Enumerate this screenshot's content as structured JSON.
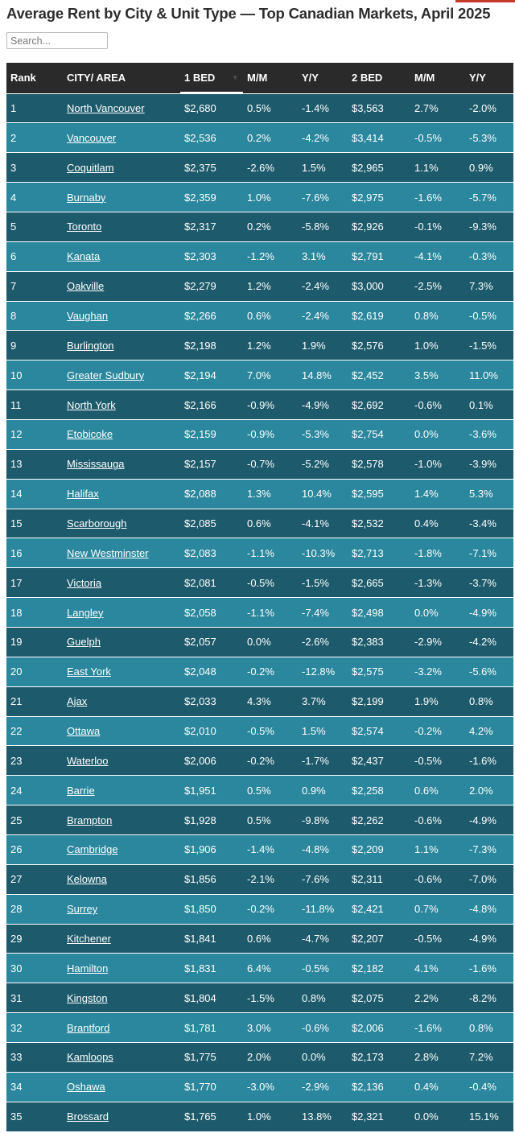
{
  "page": {
    "title": "Average Rent by City & Unit Type — Top Canadian Markets, April 2025",
    "search_placeholder": "Search...",
    "accent_color": "#c0392b",
    "row_colors": [
      "#1d5b6c",
      "#2a879d"
    ],
    "header_color": "#2a2a2a"
  },
  "table": {
    "columns": [
      "Rank",
      "CITY/ AREA",
      "1 BED",
      "M/M",
      "Y/Y",
      "2 BED",
      "M/M",
      "Y/Y"
    ],
    "sorted_column": "1 BED",
    "rows": [
      [
        "1",
        "North Vancouver",
        "$2,680",
        "0.5%",
        "-1.4%",
        "$3,563",
        "2.7%",
        "-2.0%"
      ],
      [
        "2",
        "Vancouver",
        "$2,536",
        "0.2%",
        "-4.2%",
        "$3,414",
        "-0.5%",
        "-5.3%"
      ],
      [
        "3",
        "Coquitlam",
        "$2,375",
        "-2.6%",
        "1.5%",
        "$2,965",
        "1.1%",
        "0.9%"
      ],
      [
        "4",
        "Burnaby",
        "$2,359",
        "1.0%",
        "-7.6%",
        "$2,975",
        "-1.6%",
        "-5.7%"
      ],
      [
        "5",
        "Toronto",
        "$2,317",
        "0.2%",
        "-5.8%",
        "$2,926",
        "-0.1%",
        "-9.3%"
      ],
      [
        "6",
        "Kanata",
        "$2,303",
        "-1.2%",
        "3.1%",
        "$2,791",
        "-4.1%",
        "-0.3%"
      ],
      [
        "7",
        "Oakville",
        "$2,279",
        "1.2%",
        "-2.4%",
        "$3,000",
        "-2.5%",
        "7.3%"
      ],
      [
        "8",
        "Vaughan",
        "$2,266",
        "0.6%",
        "-2.4%",
        "$2,619",
        "0.8%",
        "-0.5%"
      ],
      [
        "9",
        "Burlington",
        "$2,198",
        "1.2%",
        "1.9%",
        "$2,576",
        "1.0%",
        "-1.5%"
      ],
      [
        "10",
        "Greater Sudbury",
        "$2,194",
        "7.0%",
        "14.8%",
        "$2,452",
        "3.5%",
        "11.0%"
      ],
      [
        "11",
        "North York",
        "$2,166",
        "-0.9%",
        "-4.9%",
        "$2,692",
        "-0.6%",
        "0.1%"
      ],
      [
        "12",
        "Etobicoke",
        "$2,159",
        "-0.9%",
        "-5.3%",
        "$2,754",
        "0.0%",
        "-3.6%"
      ],
      [
        "13",
        "Mississauga",
        "$2,157",
        "-0.7%",
        "-5.2%",
        "$2,578",
        "-1.0%",
        "-3.9%"
      ],
      [
        "14",
        "Halifax",
        "$2,088",
        "1.3%",
        "10.4%",
        "$2,595",
        "1.4%",
        "5.3%"
      ],
      [
        "15",
        "Scarborough",
        "$2,085",
        "0.6%",
        "-4.1%",
        "$2,532",
        "0.4%",
        "-3.4%"
      ],
      [
        "16",
        "New Westminster",
        "$2,083",
        "-1.1%",
        "-10.3%",
        "$2,713",
        "-1.8%",
        "-7.1%"
      ],
      [
        "17",
        "Victoria",
        "$2,081",
        "-0.5%",
        "-1.5%",
        "$2,665",
        "-1.3%",
        "-3.7%"
      ],
      [
        "18",
        "Langley",
        "$2,058",
        "-1.1%",
        "-7.4%",
        "$2,498",
        "0.0%",
        "-4.9%"
      ],
      [
        "19",
        "Guelph",
        "$2,057",
        "0.0%",
        "-2.6%",
        "$2,383",
        "-2.9%",
        "-4.2%"
      ],
      [
        "20",
        "East York",
        "$2,048",
        "-0.2%",
        "-12.8%",
        "$2,575",
        "-3.2%",
        "-5.6%"
      ],
      [
        "21",
        "Ajax",
        "$2,033",
        "4.3%",
        "3.7%",
        "$2,199",
        "1.9%",
        "0.8%"
      ],
      [
        "22",
        "Ottawa",
        "$2,010",
        "-0.5%",
        "1.5%",
        "$2,574",
        "-0.2%",
        "4.2%"
      ],
      [
        "23",
        "Waterloo",
        "$2,006",
        "-0.2%",
        "-1.7%",
        "$2,437",
        "-0.5%",
        "-1.6%"
      ],
      [
        "24",
        "Barrie",
        "$1,951",
        "0.5%",
        "0.9%",
        "$2,258",
        "0.6%",
        "2.0%"
      ],
      [
        "25",
        "Brampton",
        "$1,928",
        "0.5%",
        "-9.8%",
        "$2,262",
        "-0.6%",
        "-4.9%"
      ],
      [
        "26",
        "Cambridge",
        "$1,906",
        "-1.4%",
        "-4.8%",
        "$2,209",
        "1.1%",
        "-7.3%"
      ],
      [
        "27",
        "Kelowna",
        "$1,856",
        "-2.1%",
        "-7.6%",
        "$2,311",
        "-0.6%",
        "-7.0%"
      ],
      [
        "28",
        "Surrey",
        "$1,850",
        "-0.2%",
        "-11.8%",
        "$2,421",
        "0.7%",
        "-4.8%"
      ],
      [
        "29",
        "Kitchener",
        "$1,841",
        "0.6%",
        "-4.7%",
        "$2,207",
        "-0.5%",
        "-4.9%"
      ],
      [
        "30",
        "Hamilton",
        "$1,831",
        "6.4%",
        "-0.5%",
        "$2,182",
        "4.1%",
        "-1.6%"
      ],
      [
        "31",
        "Kingston",
        "$1,804",
        "-1.5%",
        "0.8%",
        "$2,075",
        "2.2%",
        "-8.2%"
      ],
      [
        "32",
        "Brantford",
        "$1,781",
        "3.0%",
        "-0.6%",
        "$2,006",
        "-1.6%",
        "0.8%"
      ],
      [
        "33",
        "Kamloops",
        "$1,775",
        "2.0%",
        "0.0%",
        "$2,173",
        "2.8%",
        "7.2%"
      ],
      [
        "34",
        "Oshawa",
        "$1,770",
        "-3.0%",
        "-2.9%",
        "$2,136",
        "0.4%",
        "-0.4%"
      ],
      [
        "35",
        "Brossard",
        "$1,765",
        "1.0%",
        "13.8%",
        "$2,321",
        "0.0%",
        "15.1%"
      ]
    ]
  }
}
